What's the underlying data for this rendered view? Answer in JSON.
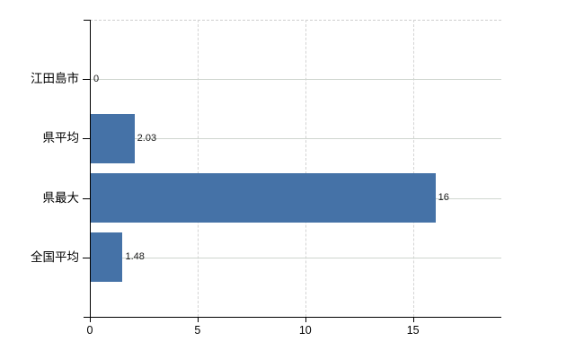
{
  "chart_data": {
    "type": "bar",
    "orientation": "horizontal",
    "title": "",
    "subtitle": "",
    "xlabel": "",
    "ylabel": "",
    "categories": [
      "江田島市",
      "県平均",
      "県最大",
      "全国平均"
    ],
    "values": [
      0,
      2.03,
      16,
      1.48
    ],
    "value_labels": [
      "0",
      "2.03",
      "16",
      "1.48"
    ],
    "series_name": "",
    "legend": "none",
    "x_axis": {
      "min": 0,
      "max": 19.1,
      "ticks": [
        0,
        5,
        10,
        15
      ],
      "tick_labels": [
        "0",
        "5",
        "10",
        "15"
      ]
    },
    "grid": {
      "horizontal_row_lines": "solid",
      "vertical_value_lines": "dashed",
      "plot_top_border": "dashed"
    },
    "colors": {
      "bar": "#4572a7",
      "axis": "#000000",
      "gridline_horizontal": "#cfd6cf",
      "gridline_vertical": "#d4d4d4",
      "category_text": "#000000",
      "value_text": "#1a1a1a",
      "background": "#ffffff"
    }
  }
}
